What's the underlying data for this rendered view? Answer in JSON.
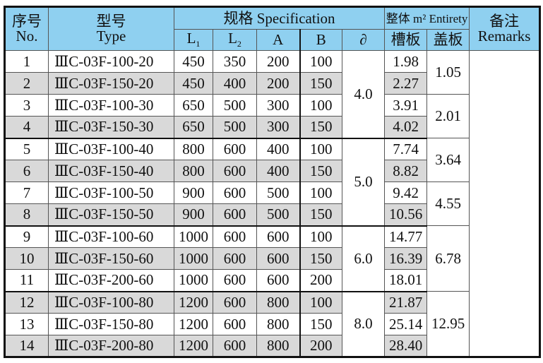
{
  "header": {
    "no_cn": "序号",
    "no_en": "No.",
    "type_cn": "型号",
    "type_en": "Type",
    "spec": "规格 Specification",
    "entirety": "整体 m² Entirety",
    "remarks_cn": "备注",
    "remarks_en": "Remarks",
    "cols": [
      "L",
      "L",
      "A",
      "B",
      "∂",
      "槽板",
      "盖板"
    ],
    "l1_sub": "1",
    "l2_sub": "2"
  },
  "colors": {
    "header_bg": "#8fd0f0",
    "shaded_row": "#d9d9d9"
  },
  "rows": [
    {
      "no": "1",
      "type": "ⅢC-03F-100-20",
      "l1": "450",
      "l2": "350",
      "a": "200",
      "b": "100",
      "trough": "1.98"
    },
    {
      "no": "2",
      "type": "ⅢC-03F-150-20",
      "l1": "450",
      "l2": "400",
      "a": "200",
      "b": "150",
      "trough": "2.27"
    },
    {
      "no": "3",
      "type": "ⅢC-03F-100-30",
      "l1": "650",
      "l2": "500",
      "a": "300",
      "b": "100",
      "trough": "3.91"
    },
    {
      "no": "4",
      "type": "ⅢC-03F-150-30",
      "l1": "650",
      "l2": "500",
      "a": "300",
      "b": "150",
      "trough": "4.02"
    },
    {
      "no": "5",
      "type": "ⅢC-03F-100-40",
      "l1": "800",
      "l2": "600",
      "a": "400",
      "b": "100",
      "trough": "7.74"
    },
    {
      "no": "6",
      "type": "ⅢC-03F-150-40",
      "l1": "800",
      "l2": "600",
      "a": "400",
      "b": "150",
      "trough": "8.82"
    },
    {
      "no": "7",
      "type": "ⅢC-03F-100-50",
      "l1": "900",
      "l2": "600",
      "a": "500",
      "b": "100",
      "trough": "9.42"
    },
    {
      "no": "8",
      "type": "ⅢC-03F-150-50",
      "l1": "900",
      "l2": "600",
      "a": "500",
      "b": "150",
      "trough": "10.56"
    },
    {
      "no": "9",
      "type": "ⅢC-03F-100-60",
      "l1": "1000",
      "l2": "600",
      "a": "600",
      "b": "100",
      "trough": "14.77"
    },
    {
      "no": "10",
      "type": "ⅢC-03F-150-60",
      "l1": "1000",
      "l2": "600",
      "a": "600",
      "b": "150",
      "trough": "16.39"
    },
    {
      "no": "11",
      "type": "ⅢC-03F-200-60",
      "l1": "1000",
      "l2": "600",
      "a": "600",
      "b": "200",
      "trough": "18.01"
    },
    {
      "no": "12",
      "type": "ⅢC-03F-100-80",
      "l1": "1200",
      "l2": "600",
      "a": "800",
      "b": "100",
      "trough": "21.87"
    },
    {
      "no": "13",
      "type": "ⅢC-03F-150-80",
      "l1": "1200",
      "l2": "600",
      "a": "800",
      "b": "150",
      "trough": "25.14"
    },
    {
      "no": "14",
      "type": "ⅢC-03F-200-80",
      "l1": "1200",
      "l2": "600",
      "a": "800",
      "b": "200",
      "trough": "28.40"
    }
  ],
  "thickness_groups": [
    {
      "start": 0,
      "span": 4,
      "value": "4.0"
    },
    {
      "start": 4,
      "span": 4,
      "value": "5.0"
    },
    {
      "start": 8,
      "span": 3,
      "value": "6.0"
    },
    {
      "start": 11,
      "span": 3,
      "value": "8.0"
    }
  ],
  "cover_groups": [
    {
      "start": 0,
      "span": 2,
      "value": "1.05"
    },
    {
      "start": 2,
      "span": 2,
      "value": "2.01"
    },
    {
      "start": 4,
      "span": 2,
      "value": "3.64"
    },
    {
      "start": 6,
      "span": 2,
      "value": "4.55"
    },
    {
      "start": 8,
      "span": 3,
      "value": "6.78"
    },
    {
      "start": 11,
      "span": 3,
      "value": "12.95"
    }
  ],
  "remarks": ""
}
